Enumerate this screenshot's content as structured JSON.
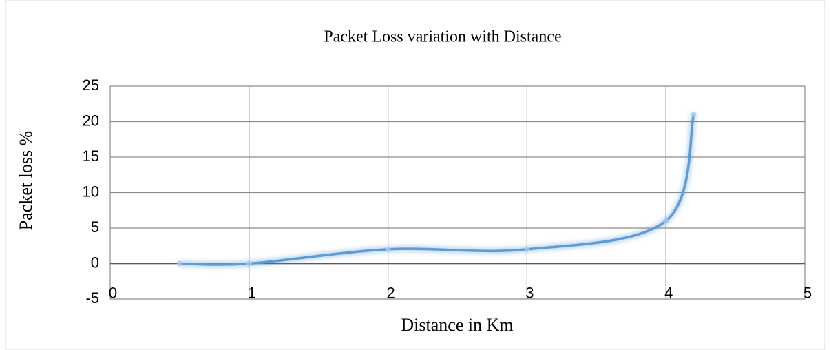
{
  "chart_data": {
    "type": "scatter",
    "title": "Packet Loss variation with Distance",
    "x_label": "Distance in Km",
    "y_label": "Packet loss %",
    "x": [
      0.5,
      1,
      2,
      3,
      4,
      4.2
    ],
    "values": [
      0,
      0,
      2,
      2,
      6,
      21
    ],
    "color": "#5b9bd5",
    "smooth": true,
    "xlim": [
      0,
      5
    ],
    "xticks": [
      0,
      1,
      2,
      3,
      4,
      5
    ],
    "ylim": [
      -5,
      25
    ],
    "yticks": [
      -5,
      0,
      5,
      10,
      15,
      20,
      25
    ],
    "grid": true
  }
}
